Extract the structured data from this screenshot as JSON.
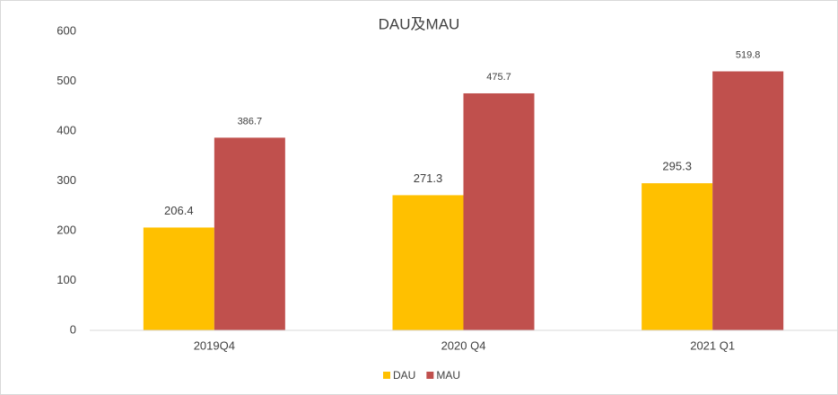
{
  "chart_data": {
    "type": "bar",
    "title": "DAU及MAU",
    "categories": [
      "2019Q4",
      "2020 Q4",
      "2021 Q1"
    ],
    "series": [
      {
        "name": "DAU",
        "color": "#ffc000",
        "values": [
          206.4,
          271.3,
          295.3
        ]
      },
      {
        "name": "MAU",
        "color": "#c0504d",
        "values": [
          386.7,
          475.7,
          519.8
        ]
      }
    ],
    "ylim": [
      0,
      600
    ],
    "yticks": [
      0,
      100,
      200,
      300,
      400,
      500,
      600
    ],
    "grid": false,
    "legend": "bottom"
  }
}
